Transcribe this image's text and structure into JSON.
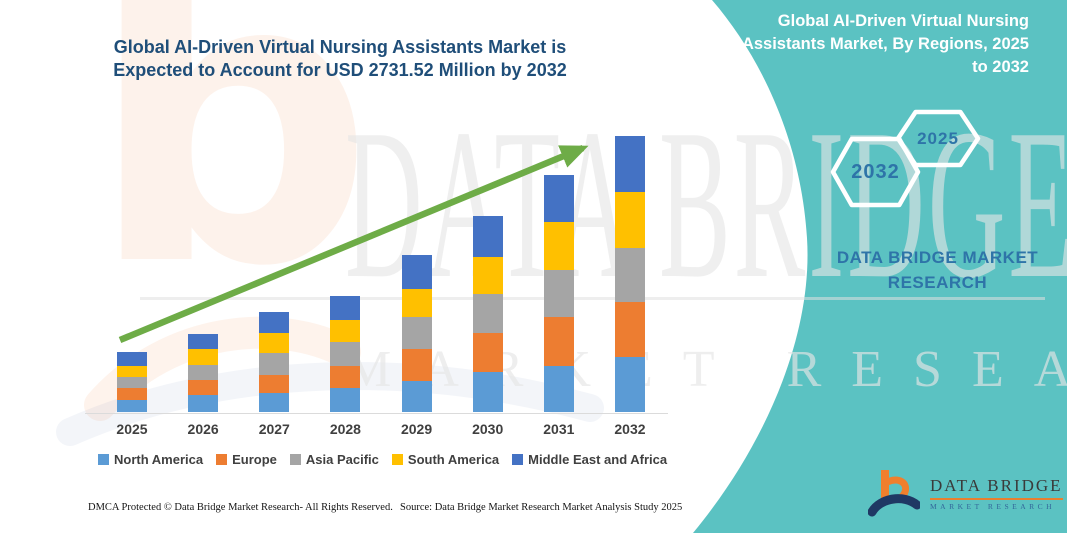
{
  "header": {
    "left_title": "Global AI-Driven Virtual Nursing Assistants Market is Expected to Account for USD 2731.52 Million by 2032",
    "right_title": "Global AI-Driven Virtual Nursing Assistants Market, By Regions, 2025 to 2032"
  },
  "badges": {
    "end_year": "2032",
    "start_year": "2025"
  },
  "brand": {
    "panel_text": "DATA BRIDGE MARKET RESEARCH",
    "watermark_line1": "DATA BRIDGE",
    "watermark_line2": "MARKET RESEARCH",
    "logo_title": "DATA BRIDGE",
    "logo_subtitle": "MARKET RESEARCH"
  },
  "chart_data": {
    "type": "bar",
    "stacked": true,
    "title": "Global AI-Driven Virtual Nursing Assistants Market, By Regions, 2025 to 2032",
    "unit": "USD Million",
    "categories": [
      "2025",
      "2026",
      "2027",
      "2028",
      "2029",
      "2030",
      "2031",
      "2032"
    ],
    "series": [
      {
        "name": "North America",
        "color": "#5B9BD5",
        "values": [
          119,
          168,
          188,
          238,
          307,
          396,
          455,
          545
        ]
      },
      {
        "name": "Europe",
        "color": "#ED7D31",
        "values": [
          119,
          148,
          178,
          218,
          317,
          386,
          485,
          545
        ]
      },
      {
        "name": "Asia Pacific",
        "color": "#A5A5A5",
        "values": [
          109,
          148,
          218,
          238,
          317,
          386,
          465,
          535
        ]
      },
      {
        "name": "South America",
        "color": "#FFC000",
        "values": [
          109,
          158,
          198,
          218,
          277,
          366,
          475,
          554
        ]
      },
      {
        "name": "Middle East and Africa",
        "color": "#4472C4",
        "values": [
          139,
          148,
          208,
          238,
          337,
          406,
          465,
          552.52
        ]
      }
    ],
    "totals": [
      595,
      770,
      990,
      1150,
      1555,
      1940,
      2345,
      2731.52
    ],
    "ylim": [
      0,
      2800
    ],
    "gridlines": false,
    "legend_position": "bottom",
    "trend_arrow": true,
    "trend_arrow_color": "#6EAC47"
  },
  "footer": {
    "left": "DMCA Protected © Data Bridge Market Research-  All Rights Reserved.",
    "right": "Source: Data Bridge Market Research  Market Analysis Study 2025"
  },
  "colors": {
    "teal": "#5BC2C2",
    "title_blue": "#1F4E79",
    "accent_blue": "#2E74A8",
    "axis_label": "#404040"
  }
}
